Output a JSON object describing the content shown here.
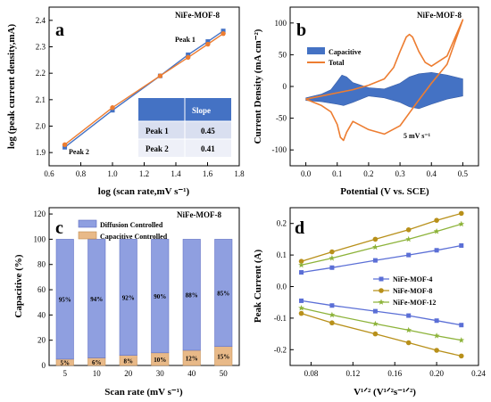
{
  "chart_data": [
    {
      "panel": "a",
      "type": "line",
      "title": "NiFe-MOF-8",
      "xlabel": "log (scan rate,mV s⁻¹)",
      "ylabel": "log (peak current density,mA)",
      "xlim": [
        0.6,
        1.8
      ],
      "ylim": [
        1.85,
        2.45
      ],
      "xticks": [
        "0.6",
        "0.8",
        "1.0",
        "1.2",
        "1.4",
        "1.6",
        "1.8"
      ],
      "yticks": [
        "1.9",
        "2.0",
        "2.1",
        "2.2",
        "2.3",
        "2.4"
      ],
      "series": [
        {
          "name": "Peak 1",
          "color": "#4472c4",
          "x": [
            0.699,
            1.0,
            1.301,
            1.477,
            1.602,
            1.699
          ],
          "y": [
            1.92,
            2.06,
            2.19,
            2.27,
            2.32,
            2.36
          ]
        },
        {
          "name": "Peak 2",
          "color": "#ed7d31",
          "x": [
            0.699,
            1.0,
            1.301,
            1.477,
            1.602,
            1.699
          ],
          "y": [
            1.93,
            2.07,
            2.19,
            2.26,
            2.31,
            2.35
          ]
        }
      ],
      "annotations": [
        "Peak 1",
        "Peak 2"
      ],
      "table": {
        "header": [
          "",
          "Slope"
        ],
        "rows": [
          [
            "Peak 1",
            "0.45"
          ],
          [
            "Peak 2",
            "0.41"
          ]
        ]
      }
    },
    {
      "panel": "b",
      "type": "line",
      "title": "NiFe-MOF-8",
      "xlabel": "Potential (V vs. SCE)",
      "ylabel": "Current Density (mA cm⁻²)",
      "xlim": [
        -0.05,
        0.55
      ],
      "ylim": [
        -125,
        125
      ],
      "xticks": [
        "0.0",
        "0.1",
        "0.2",
        "0.3",
        "0.4",
        "0.5"
      ],
      "yticks": [
        "-100",
        "-50",
        "0",
        "50",
        "100"
      ],
      "annotation": "5 mV s⁻¹",
      "legend": [
        "Capacitive",
        "Total"
      ],
      "capacitive_upper": {
        "x": [
          0.0,
          0.05,
          0.08,
          0.1,
          0.115,
          0.13,
          0.15,
          0.2,
          0.25,
          0.3,
          0.33,
          0.36,
          0.4,
          0.45,
          0.5
        ],
        "y": [
          -18,
          -12,
          -5,
          8,
          18,
          15,
          6,
          -2,
          -4,
          5,
          15,
          20,
          22,
          18,
          12
        ]
      },
      "capacitive_lower": {
        "x": [
          0.0,
          0.05,
          0.1,
          0.12,
          0.15,
          0.2,
          0.25,
          0.3,
          0.33,
          0.36,
          0.4,
          0.45,
          0.5
        ],
        "y": [
          -22,
          -24,
          -28,
          -30,
          -25,
          -15,
          -18,
          -25,
          -32,
          -35,
          -28,
          -20,
          -15
        ]
      },
      "total": {
        "x": [
          0.0,
          0.05,
          0.1,
          0.15,
          0.2,
          0.25,
          0.28,
          0.3,
          0.32,
          0.33,
          0.34,
          0.36,
          0.38,
          0.4,
          0.45,
          0.5,
          0.45,
          0.4,
          0.35,
          0.3,
          0.25,
          0.2,
          0.15,
          0.13,
          0.12,
          0.11,
          0.1,
          0.08,
          0.05,
          0.0
        ],
        "y": [
          -20,
          -15,
          -10,
          -5,
          2,
          12,
          30,
          55,
          78,
          82,
          78,
          55,
          38,
          32,
          48,
          105,
          35,
          5,
          -28,
          -62,
          -75,
          -68,
          -55,
          -72,
          -85,
          -80,
          -60,
          -40,
          -30,
          -20
        ]
      }
    },
    {
      "panel": "c",
      "type": "bar",
      "title": "NiFe-MOF-8",
      "xlabel": "Scan rate (mV s⁻¹)",
      "ylabel": "Capacitive (%)",
      "ylim": [
        0,
        125
      ],
      "yticks": [
        "0",
        "20",
        "40",
        "60",
        "80",
        "100",
        "120"
      ],
      "categories": [
        "5",
        "10",
        "20",
        "30",
        "40",
        "50"
      ],
      "series": [
        {
          "name": "Diffusion Controlled",
          "color": "#8f9fe0",
          "values": [
            95,
            94,
            92,
            90,
            88,
            85
          ],
          "labels": [
            "95%",
            "94%",
            "92%",
            "90%",
            "88%",
            "85%"
          ]
        },
        {
          "name": "Capacitive Controlled",
          "color": "#e8b988",
          "values": [
            5,
            6,
            8,
            10,
            12,
            15
          ],
          "labels": [
            "5%",
            "6%",
            "8%",
            "10%",
            "12%",
            "15%"
          ]
        }
      ]
    },
    {
      "panel": "d",
      "type": "line",
      "xlabel": "V¹ᐟ² (V¹ᐟ²s⁻¹ᐟ²)",
      "ylabel": "Peak Current (A)",
      "xlim": [
        0.06,
        0.24
      ],
      "ylim": [
        -0.25,
        0.25
      ],
      "xticks": [
        "0.08",
        "0.12",
        "0.16",
        "0.20",
        "0.24"
      ],
      "yticks": [
        "-0.2",
        "-0.1",
        "0.0",
        "0.1",
        "0.2"
      ],
      "x": [
        0.0707,
        0.1,
        0.1414,
        0.1732,
        0.2,
        0.2236
      ],
      "series": [
        {
          "name": "NiFe-MOF-4",
          "color": "#5b6fd6",
          "marker": "square",
          "upper": [
            0.045,
            0.06,
            0.083,
            0.1,
            0.115,
            0.13
          ],
          "lower": [
            -0.045,
            -0.06,
            -0.078,
            -0.092,
            -0.108,
            -0.122
          ]
        },
        {
          "name": "NiFe-MOF-8",
          "color": "#b8901a",
          "marker": "circle",
          "upper": [
            0.08,
            0.11,
            0.15,
            0.18,
            0.21,
            0.232
          ],
          "lower": [
            -0.085,
            -0.115,
            -0.15,
            -0.178,
            -0.202,
            -0.22
          ]
        },
        {
          "name": "NiFe-MOF-12",
          "color": "#8db33a",
          "marker": "star",
          "upper": [
            0.068,
            0.09,
            0.125,
            0.15,
            0.175,
            0.198
          ],
          "lower": [
            -0.068,
            -0.09,
            -0.118,
            -0.138,
            -0.156,
            -0.17
          ]
        }
      ]
    }
  ]
}
